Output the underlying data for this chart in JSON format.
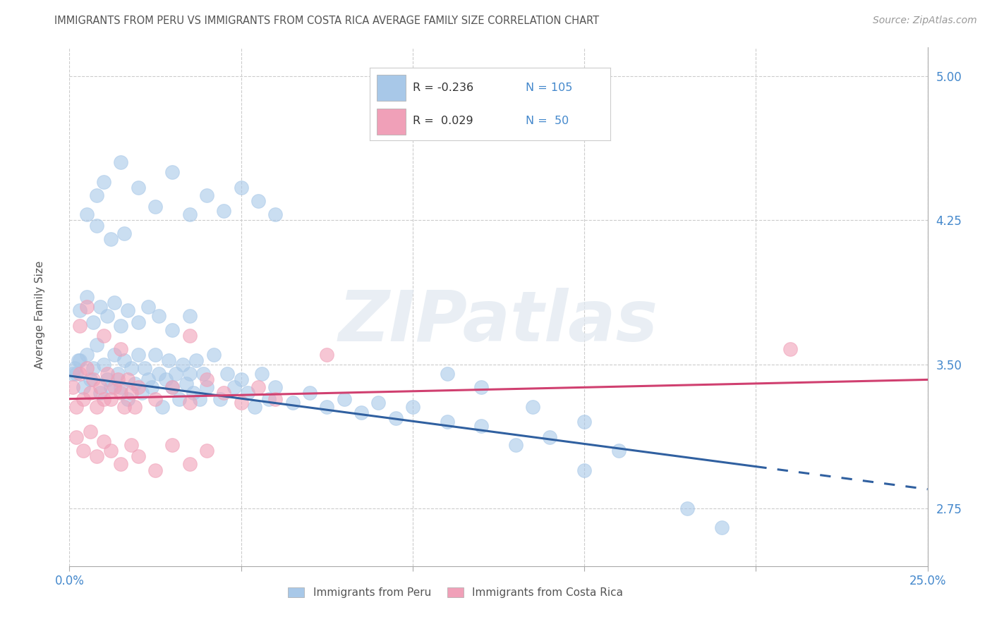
{
  "title": "IMMIGRANTS FROM PERU VS IMMIGRANTS FROM COSTA RICA AVERAGE FAMILY SIZE CORRELATION CHART",
  "source": "Source: ZipAtlas.com",
  "ylabel": "Average Family Size",
  "xmin": 0.0,
  "xmax": 25.0,
  "ymin": 2.45,
  "ymax": 5.15,
  "yticks": [
    2.75,
    3.5,
    4.25,
    5.0
  ],
  "xticks": [
    0.0,
    5.0,
    10.0,
    15.0,
    20.0,
    25.0
  ],
  "blue_scatter_color": "#A8C8E8",
  "pink_scatter_color": "#F0A0B8",
  "blue_line_color": "#3060A0",
  "pink_line_color": "#D04070",
  "blue_label_color": "#4488CC",
  "R_peru": -0.236,
  "N_peru": 105,
  "R_costa_rica": 0.029,
  "N_costa_rica": 50,
  "legend_label_peru": "Immigrants from Peru",
  "legend_label_costa_rica": "Immigrants from Costa Rica",
  "watermark": "ZIPatlas",
  "background_color": "#FFFFFF",
  "grid_color": "#CCCCCC",
  "title_color": "#555555",
  "axis_color": "#AAAAAA",
  "peru_trend_start_y": 3.44,
  "peru_trend_end_y": 2.85,
  "cr_trend_start_y": 3.32,
  "cr_trend_end_y": 3.42,
  "solid_end_x": 20.0,
  "peru_points": [
    [
      0.2,
      3.45
    ],
    [
      0.3,
      3.52
    ],
    [
      0.4,
      3.38
    ],
    [
      0.5,
      3.55
    ],
    [
      0.6,
      3.42
    ],
    [
      0.7,
      3.48
    ],
    [
      0.8,
      3.6
    ],
    [
      0.9,
      3.35
    ],
    [
      1.0,
      3.5
    ],
    [
      1.1,
      3.42
    ],
    [
      1.2,
      3.38
    ],
    [
      1.3,
      3.55
    ],
    [
      1.4,
      3.45
    ],
    [
      1.5,
      3.38
    ],
    [
      1.6,
      3.52
    ],
    [
      1.7,
      3.32
    ],
    [
      1.8,
      3.48
    ],
    [
      1.9,
      3.4
    ],
    [
      2.0,
      3.55
    ],
    [
      2.1,
      3.35
    ],
    [
      2.2,
      3.48
    ],
    [
      2.3,
      3.42
    ],
    [
      2.4,
      3.38
    ],
    [
      2.5,
      3.55
    ],
    [
      2.6,
      3.45
    ],
    [
      2.7,
      3.28
    ],
    [
      2.8,
      3.42
    ],
    [
      2.9,
      3.52
    ],
    [
      3.0,
      3.38
    ],
    [
      3.1,
      3.45
    ],
    [
      3.2,
      3.32
    ],
    [
      3.3,
      3.5
    ],
    [
      3.4,
      3.4
    ],
    [
      3.5,
      3.45
    ],
    [
      3.6,
      3.35
    ],
    [
      3.7,
      3.52
    ],
    [
      3.8,
      3.32
    ],
    [
      3.9,
      3.45
    ],
    [
      4.0,
      3.38
    ],
    [
      4.2,
      3.55
    ],
    [
      4.4,
      3.32
    ],
    [
      4.6,
      3.45
    ],
    [
      4.8,
      3.38
    ],
    [
      5.0,
      3.42
    ],
    [
      5.2,
      3.35
    ],
    [
      5.4,
      3.28
    ],
    [
      5.6,
      3.45
    ],
    [
      5.8,
      3.32
    ],
    [
      6.0,
      3.38
    ],
    [
      6.5,
      3.3
    ],
    [
      7.0,
      3.35
    ],
    [
      7.5,
      3.28
    ],
    [
      8.0,
      3.32
    ],
    [
      8.5,
      3.25
    ],
    [
      9.0,
      3.3
    ],
    [
      9.5,
      3.22
    ],
    [
      10.0,
      3.28
    ],
    [
      11.0,
      3.2
    ],
    [
      12.0,
      3.18
    ],
    [
      0.3,
      3.78
    ],
    [
      0.5,
      3.85
    ],
    [
      0.7,
      3.72
    ],
    [
      0.9,
      3.8
    ],
    [
      1.1,
      3.75
    ],
    [
      1.3,
      3.82
    ],
    [
      1.5,
      3.7
    ],
    [
      1.7,
      3.78
    ],
    [
      2.0,
      3.72
    ],
    [
      2.3,
      3.8
    ],
    [
      2.6,
      3.75
    ],
    [
      3.0,
      3.68
    ],
    [
      3.5,
      3.75
    ],
    [
      0.5,
      4.28
    ],
    [
      0.8,
      4.38
    ],
    [
      1.0,
      4.45
    ],
    [
      1.5,
      4.55
    ],
    [
      2.0,
      4.42
    ],
    [
      2.5,
      4.32
    ],
    [
      3.0,
      4.5
    ],
    [
      3.5,
      4.28
    ],
    [
      4.0,
      4.38
    ],
    [
      4.5,
      4.3
    ],
    [
      5.0,
      4.42
    ],
    [
      5.5,
      4.35
    ],
    [
      6.0,
      4.28
    ],
    [
      0.8,
      4.22
    ],
    [
      1.2,
      4.15
    ],
    [
      1.6,
      4.18
    ],
    [
      13.0,
      3.08
    ],
    [
      14.0,
      3.12
    ],
    [
      15.0,
      2.95
    ],
    [
      16.0,
      3.05
    ],
    [
      18.0,
      2.75
    ],
    [
      19.0,
      2.65
    ],
    [
      11.0,
      3.45
    ],
    [
      12.0,
      3.38
    ],
    [
      13.5,
      3.28
    ],
    [
      15.0,
      3.2
    ],
    [
      0.1,
      3.45
    ],
    [
      0.15,
      3.48
    ],
    [
      0.25,
      3.52
    ]
  ],
  "cr_points": [
    [
      0.1,
      3.38
    ],
    [
      0.2,
      3.28
    ],
    [
      0.3,
      3.45
    ],
    [
      0.4,
      3.32
    ],
    [
      0.5,
      3.48
    ],
    [
      0.6,
      3.35
    ],
    [
      0.7,
      3.42
    ],
    [
      0.8,
      3.28
    ],
    [
      0.9,
      3.38
    ],
    [
      1.0,
      3.32
    ],
    [
      1.1,
      3.45
    ],
    [
      1.2,
      3.32
    ],
    [
      1.3,
      3.38
    ],
    [
      1.4,
      3.42
    ],
    [
      1.5,
      3.35
    ],
    [
      1.6,
      3.28
    ],
    [
      1.7,
      3.42
    ],
    [
      1.8,
      3.35
    ],
    [
      1.9,
      3.28
    ],
    [
      2.0,
      3.38
    ],
    [
      2.5,
      3.32
    ],
    [
      3.0,
      3.38
    ],
    [
      3.5,
      3.3
    ],
    [
      4.0,
      3.42
    ],
    [
      4.5,
      3.35
    ],
    [
      5.0,
      3.3
    ],
    [
      5.5,
      3.38
    ],
    [
      6.0,
      3.32
    ],
    [
      0.2,
      3.12
    ],
    [
      0.4,
      3.05
    ],
    [
      0.6,
      3.15
    ],
    [
      0.8,
      3.02
    ],
    [
      1.0,
      3.1
    ],
    [
      1.2,
      3.05
    ],
    [
      1.5,
      2.98
    ],
    [
      1.8,
      3.08
    ],
    [
      2.0,
      3.02
    ],
    [
      2.5,
      2.95
    ],
    [
      3.0,
      3.08
    ],
    [
      3.5,
      2.98
    ],
    [
      4.0,
      3.05
    ],
    [
      0.3,
      3.7
    ],
    [
      0.5,
      3.8
    ],
    [
      1.0,
      3.65
    ],
    [
      1.5,
      3.58
    ],
    [
      3.5,
      3.65
    ],
    [
      7.5,
      3.55
    ],
    [
      21.0,
      3.58
    ]
  ]
}
